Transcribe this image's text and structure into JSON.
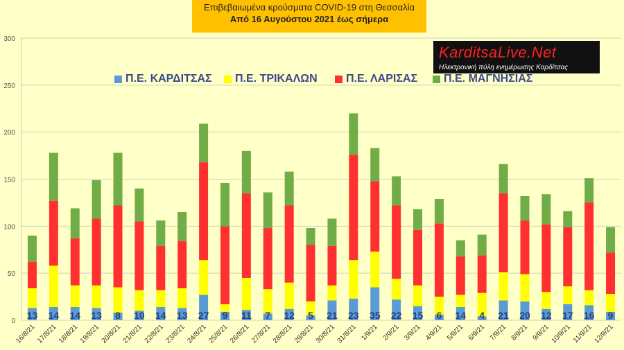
{
  "header": {
    "title": "Επιβεβαιωμένα κρούσματα COVID-19 στη Θεσσαλία",
    "subtitle": "Από 16 Αυγούστου 2021 έως σήμερα"
  },
  "logo": {
    "name": "KarditsaLive.Net",
    "tagline": "Ηλεκτρονική πύλη ενημέρωσης Καρδίτσας"
  },
  "chart_data": {
    "type": "bar",
    "stacked": true,
    "ylim": [
      0,
      300
    ],
    "yticks": [
      0,
      50,
      100,
      150,
      200,
      250,
      300
    ],
    "grid": true,
    "legend_position": "top",
    "categories": [
      "16/8/21",
      "17/8/21",
      "18/8/21",
      "19/8/21",
      "20/8/21",
      "21/8/21",
      "22/8/21",
      "23/8/21",
      "24/8/21",
      "25/8/21",
      "26/8/21",
      "27/8/21",
      "28/8/21",
      "29/8/21",
      "30/8/21",
      "31/8/21",
      "1/9/21",
      "2/9/21",
      "3/9/21",
      "4/9/21",
      "5/9/21",
      "6/9/21",
      "7/9/21",
      "8/9/21",
      "9/9/21",
      "10/9/21",
      "11/9/21",
      "12/9/21"
    ],
    "series": [
      {
        "name": "Π.Ε. ΚΑΡΔΙΤΣΑΣ",
        "color": "#5b9bd5",
        "values": [
          13,
          14,
          14,
          13,
          8,
          10,
          14,
          13,
          27,
          9,
          11,
          7,
          12,
          5,
          21,
          23,
          35,
          22,
          15,
          6,
          14,
          4,
          21,
          20,
          12,
          17,
          16,
          9
        ]
      },
      {
        "name": "Π.Ε. ΤΡΙΚΑΛΩΝ",
        "color": "#ffff00",
        "values": [
          21,
          44,
          23,
          24,
          27,
          22,
          18,
          21,
          37,
          8,
          34,
          26,
          28,
          15,
          16,
          41,
          38,
          22,
          22,
          19,
          13,
          25,
          30,
          29,
          18,
          19,
          16,
          19
        ]
      },
      {
        "name": "Π.Ε. ΛΑΡΙΣΑΣ",
        "color": "#ff3030",
        "values": [
          28,
          69,
          50,
          71,
          87,
          73,
          47,
          50,
          104,
          83,
          90,
          65,
          82,
          60,
          42,
          112,
          75,
          78,
          59,
          78,
          41,
          40,
          84,
          57,
          72,
          63,
          93,
          44
        ]
      },
      {
        "name": "Π.Ε. ΜΑΓΝΗΣΙΑΣ",
        "color": "#70ad47",
        "values": [
          28,
          51,
          32,
          41,
          56,
          35,
          27,
          31,
          41,
          46,
          45,
          38,
          36,
          18,
          29,
          44,
          35,
          31,
          22,
          26,
          17,
          22,
          31,
          26,
          32,
          17,
          26,
          27
        ]
      }
    ],
    "data_labels_series": "Π.Ε. ΚΑΡΔΙΤΣΑΣ"
  }
}
